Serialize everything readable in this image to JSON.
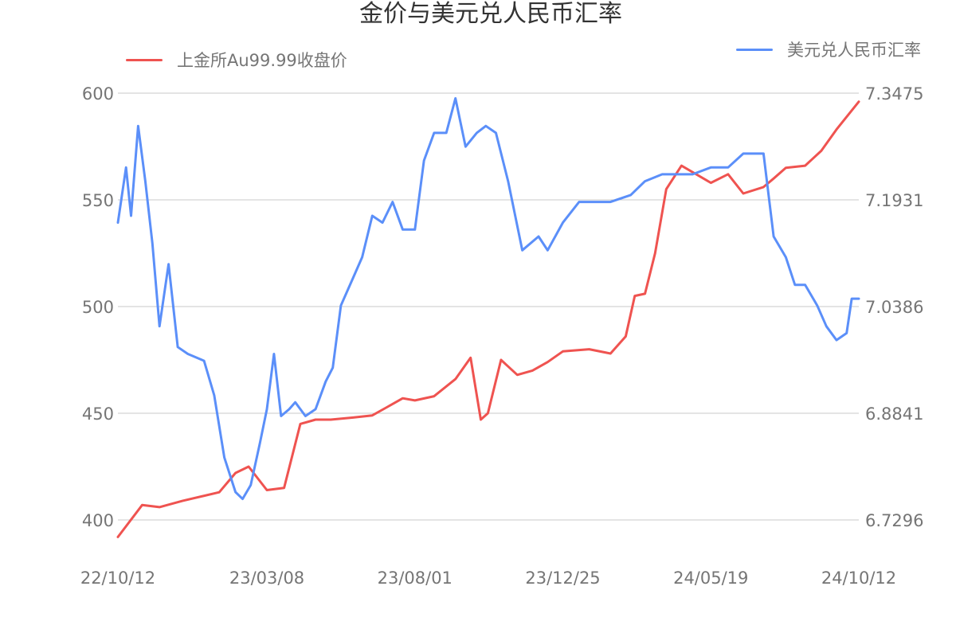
{
  "chart_data": {
    "type": "line",
    "title": "金价与美元兑人民币汇率",
    "legend_position": "top",
    "grid": true,
    "x_ticks": [
      "22/10/12",
      "23/03/08",
      "23/08/01",
      "23/12/25",
      "24/05/19",
      "24/10/12"
    ],
    "y_left": {
      "ticks": [
        "400",
        "450",
        "500",
        "550",
        "600"
      ],
      "min": 400,
      "max": 600
    },
    "y_right": {
      "ticks": [
        "6.7296",
        "6.8841",
        "7.0386",
        "7.1931",
        "7.3475"
      ],
      "min": 6.7296,
      "max": 7.3475
    },
    "series": [
      {
        "name": "上金所Au99.99收盘价",
        "color": "#ef5350",
        "axis": "left",
        "x": [
          "22/10/12",
          "22/11/05",
          "22/11/22",
          "22/12/15",
          "23/01/20",
          "23/02/05",
          "23/02/18",
          "23/03/08",
          "23/03/25",
          "23/04/10",
          "23/04/25",
          "23/05/10",
          "23/06/01",
          "23/06/20",
          "23/07/05",
          "23/07/20",
          "23/08/01",
          "23/08/20",
          "23/09/10",
          "23/09/25",
          "23/10/05",
          "23/10/12",
          "23/10/25",
          "23/11/10",
          "23/11/25",
          "23/12/10",
          "23/12/25",
          "24/01/20",
          "24/02/10",
          "24/02/25",
          "24/03/05",
          "24/03/15",
          "24/03/25",
          "24/04/05",
          "24/04/20",
          "24/05/19",
          "24/06/05",
          "24/06/20",
          "24/07/10",
          "24/07/20",
          "24/08/01",
          "24/08/20",
          "24/09/05",
          "24/09/20",
          "24/10/12"
        ],
        "values": [
          392,
          407,
          406,
          409,
          413,
          422,
          425,
          414,
          415,
          445,
          447,
          447,
          448,
          449,
          453,
          457,
          456,
          458,
          466,
          476,
          447,
          450,
          475,
          468,
          470,
          474,
          479,
          480,
          478,
          486,
          505,
          506,
          525,
          555,
          566,
          558,
          562,
          553,
          556,
          560,
          565,
          566,
          573,
          583,
          596
        ]
      },
      {
        "name": "美元兑人民币汇率",
        "color": "#5b8ff9",
        "axis": "right",
        "x": [
          "22/10/12",
          "22/10/20",
          "22/10/25",
          "22/11/01",
          "22/11/08",
          "22/11/15",
          "22/11/22",
          "22/12/01",
          "22/12/10",
          "22/12/20",
          "23/01/05",
          "23/01/15",
          "23/01/25",
          "23/02/05",
          "23/02/12",
          "23/02/20",
          "23/03/01",
          "23/03/08",
          "23/03/15",
          "23/03/22",
          "23/03/30",
          "23/04/05",
          "23/04/15",
          "23/04/25",
          "23/05/05",
          "23/05/12",
          "23/05/20",
          "23/06/01",
          "23/06/10",
          "23/06/20",
          "23/06/30",
          "23/07/10",
          "23/07/20",
          "23/08/01",
          "23/08/10",
          "23/08/20",
          "23/09/01",
          "23/09/10",
          "23/09/20",
          "23/10/01",
          "23/10/10",
          "23/10/20",
          "23/11/01",
          "23/11/15",
          "23/12/01",
          "23/12/10",
          "23/12/25",
          "24/01/10",
          "24/01/25",
          "24/02/10",
          "24/03/01",
          "24/03/15",
          "24/04/01",
          "24/04/15",
          "24/05/01",
          "24/05/19",
          "24/06/05",
          "24/06/20",
          "24/07/01",
          "24/07/10",
          "24/07/20",
          "24/08/01",
          "24/08/10",
          "24/08/20",
          "24/09/01",
          "24/09/10",
          "24/09/20",
          "24/09/30",
          "24/10/05",
          "24/10/12"
        ],
        "values": [
          7.16,
          7.24,
          7.17,
          7.3,
          7.22,
          7.13,
          7.01,
          7.1,
          6.98,
          6.97,
          6.96,
          6.91,
          6.82,
          6.77,
          6.76,
          6.78,
          6.84,
          6.89,
          6.97,
          6.88,
          6.89,
          6.9,
          6.88,
          6.89,
          6.93,
          6.95,
          7.04,
          7.08,
          7.11,
          7.17,
          7.16,
          7.19,
          7.15,
          7.15,
          7.25,
          7.29,
          7.29,
          7.34,
          7.27,
          7.29,
          7.3,
          7.29,
          7.22,
          7.12,
          7.14,
          7.12,
          7.16,
          7.19,
          7.19,
          7.19,
          7.2,
          7.22,
          7.23,
          7.23,
          7.23,
          7.24,
          7.24,
          7.26,
          7.26,
          7.26,
          7.14,
          7.11,
          7.07,
          7.07,
          7.04,
          7.01,
          6.99,
          7.0,
          7.05,
          7.05
        ]
      }
    ]
  }
}
